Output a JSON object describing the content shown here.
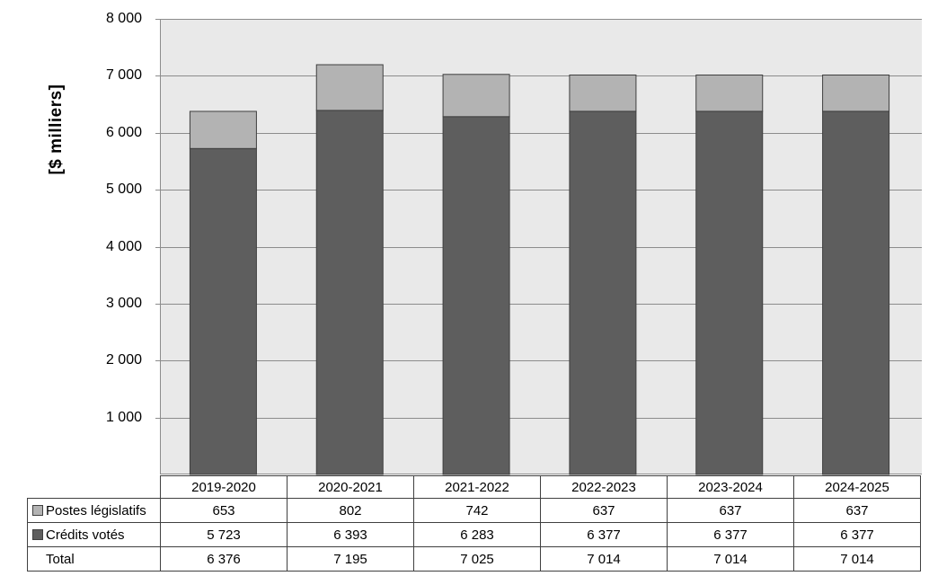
{
  "chart": {
    "ylabel": "[$ milliers]",
    "plot_bg_color": "#e9e9e9",
    "grid_color": "#8c8c8c",
    "bar_border_color": "#3f3f3f",
    "y_ticks": [
      {
        "value": 8000,
        "label": "8 000"
      },
      {
        "value": 7000,
        "label": "7 000"
      },
      {
        "value": 6000,
        "label": "6 000"
      },
      {
        "value": 5000,
        "label": "5 000"
      },
      {
        "value": 4000,
        "label": "4 000"
      },
      {
        "value": 3000,
        "label": "3 000"
      },
      {
        "value": 2000,
        "label": "2 000"
      },
      {
        "value": 1000,
        "label": "1 000"
      }
    ]
  },
  "chart_data": {
    "type": "bar",
    "stacked": true,
    "title": "",
    "xlabel": "",
    "ylabel": "[$ milliers]",
    "ylim": [
      0,
      8000
    ],
    "grid": true,
    "legend_position": "table-left",
    "categories": [
      "2019-2020",
      "2020-2021",
      "2021-2022",
      "2022-2023",
      "2023-2024",
      "2024-2025"
    ],
    "series": [
      {
        "name": "Crédits votés",
        "color": "#5e5e5e",
        "values": [
          5723,
          6393,
          6283,
          6377,
          6377,
          6377
        ]
      },
      {
        "name": "Postes législatifs",
        "color": "#b3b3b3",
        "values": [
          653,
          802,
          742,
          637,
          637,
          637
        ]
      }
    ],
    "totals": [
      6376,
      7195,
      7025,
      7014,
      7014,
      7014
    ]
  },
  "table": {
    "columns": [
      "2019-2020",
      "2020-2021",
      "2021-2022",
      "2022-2023",
      "2023-2024",
      "2024-2025"
    ],
    "rows": [
      {
        "label": "Postes législatifs",
        "marker_color": "#b3b3b3",
        "values": [
          "653",
          "802",
          "742",
          "637",
          "637",
          "637"
        ]
      },
      {
        "label": "Crédits votés",
        "marker_color": "#5e5e5e",
        "values": [
          "5 723",
          "6 393",
          "6 283",
          "6 377",
          "6 377",
          "6 377"
        ]
      },
      {
        "label": "Total",
        "marker_color": "",
        "values": [
          "6 376",
          "7 195",
          "7 025",
          "7 014",
          "7 014",
          "7 014"
        ]
      }
    ]
  }
}
